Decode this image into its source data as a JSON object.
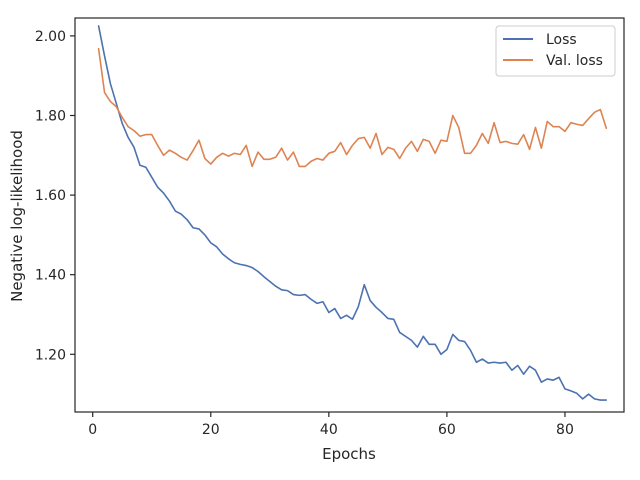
{
  "chart_data": {
    "type": "line",
    "title": "",
    "xlabel": "Epochs",
    "ylabel": "Negative log-likelihood",
    "xlim": [
      -3,
      90
    ],
    "ylim": [
      1.055,
      2.045
    ],
    "xticks": [
      0,
      20,
      40,
      60,
      80
    ],
    "xtick_labels": [
      "0",
      "20",
      "40",
      "60",
      "80"
    ],
    "yticks": [
      1.2,
      1.4,
      1.6,
      1.8,
      2.0
    ],
    "ytick_labels": [
      "1.20",
      "1.40",
      "1.60",
      "1.80",
      "2.00"
    ],
    "grid": false,
    "legend": "top-right",
    "x": [
      1,
      2,
      3,
      4,
      5,
      6,
      7,
      8,
      9,
      10,
      11,
      12,
      13,
      14,
      15,
      16,
      17,
      18,
      19,
      20,
      21,
      22,
      23,
      24,
      25,
      26,
      27,
      28,
      29,
      30,
      31,
      32,
      33,
      34,
      35,
      36,
      37,
      38,
      39,
      40,
      41,
      42,
      43,
      44,
      45,
      46,
      47,
      48,
      49,
      50,
      51,
      52,
      53,
      54,
      55,
      56,
      57,
      58,
      59,
      60,
      61,
      62,
      63,
      64,
      65,
      66,
      67,
      68,
      69,
      70,
      71,
      72,
      73,
      74,
      75,
      76,
      77,
      78,
      79,
      80,
      81,
      82,
      83,
      84,
      85,
      86,
      87
    ],
    "series": [
      {
        "name": "Loss",
        "color": "#4c72b0",
        "values": [
          2.025,
          1.95,
          1.88,
          1.83,
          1.78,
          1.745,
          1.72,
          1.675,
          1.67,
          1.645,
          1.62,
          1.605,
          1.585,
          1.56,
          1.552,
          1.538,
          1.518,
          1.515,
          1.5,
          1.48,
          1.47,
          1.452,
          1.44,
          1.43,
          1.426,
          1.423,
          1.418,
          1.408,
          1.395,
          1.383,
          1.371,
          1.362,
          1.36,
          1.35,
          1.348,
          1.35,
          1.338,
          1.328,
          1.332,
          1.305,
          1.315,
          1.29,
          1.298,
          1.288,
          1.32,
          1.375,
          1.335,
          1.318,
          1.305,
          1.29,
          1.288,
          1.255,
          1.245,
          1.235,
          1.218,
          1.245,
          1.225,
          1.225,
          1.2,
          1.212,
          1.25,
          1.235,
          1.232,
          1.21,
          1.18,
          1.188,
          1.178,
          1.18,
          1.178,
          1.18,
          1.16,
          1.172,
          1.15,
          1.17,
          1.16,
          1.13,
          1.138,
          1.135,
          1.142,
          1.113,
          1.108,
          1.102,
          1.088,
          1.1,
          1.088,
          1.085,
          1.085
        ]
      },
      {
        "name": "Val. loss",
        "color": "#dd8452",
        "values": [
          1.968,
          1.858,
          1.835,
          1.822,
          1.795,
          1.772,
          1.762,
          1.748,
          1.752,
          1.752,
          1.725,
          1.7,
          1.713,
          1.705,
          1.695,
          1.688,
          1.712,
          1.738,
          1.692,
          1.678,
          1.695,
          1.705,
          1.698,
          1.705,
          1.702,
          1.725,
          1.672,
          1.708,
          1.69,
          1.69,
          1.695,
          1.718,
          1.688,
          1.708,
          1.672,
          1.672,
          1.685,
          1.692,
          1.688,
          1.705,
          1.71,
          1.732,
          1.702,
          1.725,
          1.742,
          1.745,
          1.718,
          1.755,
          1.702,
          1.72,
          1.715,
          1.692,
          1.718,
          1.735,
          1.71,
          1.74,
          1.735,
          1.705,
          1.738,
          1.735,
          1.8,
          1.77,
          1.705,
          1.705,
          1.725,
          1.755,
          1.73,
          1.782,
          1.732,
          1.735,
          1.73,
          1.728,
          1.752,
          1.715,
          1.77,
          1.718,
          1.785,
          1.772,
          1.772,
          1.76,
          1.782,
          1.778,
          1.775,
          1.792,
          1.808,
          1.815,
          1.768
        ]
      }
    ]
  }
}
